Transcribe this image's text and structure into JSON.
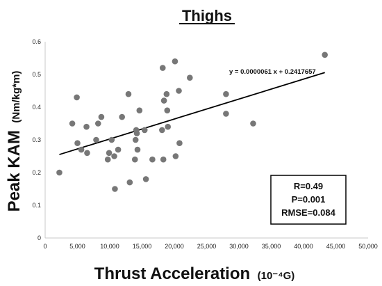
{
  "chart_data": {
    "type": "scatter",
    "title": "Thighs",
    "xlabel": "Thrust Acceleration",
    "xlabel_unit": "(10⁻⁴G)",
    "ylabel": "Peak KAM",
    "ylabel_unit": "(Nm/kg*m)",
    "xlim": [
      0,
      50000
    ],
    "ylim": [
      0,
      0.6
    ],
    "x_ticks": [
      0,
      5000,
      10000,
      15000,
      20000,
      25000,
      30000,
      35000,
      40000,
      45000,
      50000
    ],
    "x_tick_labels": [
      "0",
      "5,000",
      "10,000",
      "15,000",
      "20,000",
      "25,000",
      "30,000",
      "35,000",
      "40,000",
      "45,000",
      "50,000"
    ],
    "y_ticks": [
      0,
      0.1,
      0.2,
      0.3,
      0.4,
      0.5,
      0.6
    ],
    "y_tick_labels": [
      "0",
      "0.1",
      "0.2",
      "0.3",
      "0.4",
      "0.5",
      "0.6"
    ],
    "grid": false,
    "colors": {
      "points": "#777777",
      "line": "#000000"
    },
    "points": [
      [
        2200,
        0.2
      ],
      [
        4200,
        0.35
      ],
      [
        4900,
        0.43
      ],
      [
        5000,
        0.29
      ],
      [
        5600,
        0.27
      ],
      [
        6400,
        0.34
      ],
      [
        6500,
        0.26
      ],
      [
        7900,
        0.3
      ],
      [
        8200,
        0.35
      ],
      [
        8700,
        0.37
      ],
      [
        9700,
        0.24
      ],
      [
        9900,
        0.26
      ],
      [
        10300,
        0.3
      ],
      [
        10700,
        0.25
      ],
      [
        10800,
        0.15
      ],
      [
        11300,
        0.27
      ],
      [
        11900,
        0.37
      ],
      [
        12900,
        0.44
      ],
      [
        13100,
        0.17
      ],
      [
        13900,
        0.24
      ],
      [
        14000,
        0.3
      ],
      [
        14100,
        0.33
      ],
      [
        14200,
        0.32
      ],
      [
        14300,
        0.27
      ],
      [
        14600,
        0.39
      ],
      [
        15400,
        0.33
      ],
      [
        15600,
        0.18
      ],
      [
        16600,
        0.24
      ],
      [
        18100,
        0.33
      ],
      [
        18200,
        0.52
      ],
      [
        18300,
        0.24
      ],
      [
        18400,
        0.42
      ],
      [
        18800,
        0.44
      ],
      [
        18900,
        0.39
      ],
      [
        19000,
        0.34
      ],
      [
        20100,
        0.54
      ],
      [
        20200,
        0.25
      ],
      [
        20700,
        0.45
      ],
      [
        20800,
        0.29
      ],
      [
        22400,
        0.49
      ],
      [
        28000,
        0.44
      ],
      [
        28000,
        0.38
      ],
      [
        32200,
        0.35
      ],
      [
        43300,
        0.56
      ]
    ],
    "trendline": {
      "slope": 6.1e-06,
      "intercept": 0.2417657,
      "x_range": [
        2200,
        43300
      ],
      "equation_label": "y = 0.0000061 x + 0.2417657"
    },
    "stats": [
      "R=0.49",
      "P=0.001",
      "RMSE=0.084"
    ]
  }
}
